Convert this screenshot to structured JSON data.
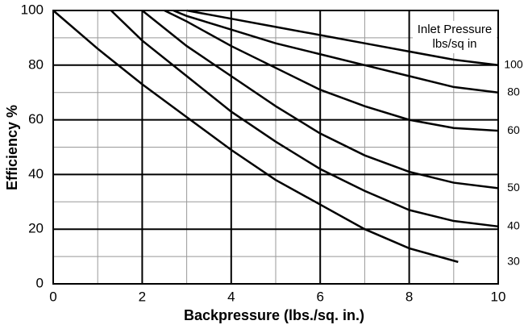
{
  "chart_data": {
    "type": "line",
    "xlabel": "Backpressure (lbs./sq. in.)",
    "ylabel": "Efficiency %",
    "annotation": [
      "Inlet Pressure",
      "lbs/sq in"
    ],
    "xlim": [
      0,
      10
    ],
    "ylim": [
      0,
      100
    ],
    "xticks": [
      0,
      2,
      4,
      6,
      8,
      10
    ],
    "yticks": [
      0,
      20,
      40,
      60,
      80,
      100
    ],
    "x_minor_grid": [
      1,
      3,
      5,
      7,
      9
    ],
    "y_minor_grid": [
      10,
      30,
      50,
      70,
      90
    ],
    "grid": true,
    "series": [
      {
        "name": "100",
        "color": "#000000",
        "x": [
          3,
          4,
          5,
          6,
          7,
          8,
          9,
          10
        ],
        "values": [
          100,
          97,
          94,
          91,
          88,
          85,
          82,
          80
        ]
      },
      {
        "name": "80",
        "color": "#000000",
        "x": [
          2.7,
          3,
          4,
          5,
          6,
          7,
          8,
          9,
          10
        ],
        "values": [
          100,
          98,
          93,
          88,
          84,
          80,
          76,
          72,
          70
        ]
      },
      {
        "name": "60",
        "color": "#000000",
        "x": [
          2.5,
          3,
          4,
          5,
          6,
          7,
          8,
          9,
          10
        ],
        "values": [
          100,
          96,
          87,
          79,
          71,
          65,
          60,
          57,
          56
        ]
      },
      {
        "name": "50",
        "color": "#000000",
        "x": [
          2,
          3,
          4,
          5,
          6,
          7,
          8,
          9,
          10
        ],
        "values": [
          100,
          87,
          76,
          65,
          55,
          47,
          41,
          37,
          35
        ]
      },
      {
        "name": "40",
        "color": "#000000",
        "x": [
          1.3,
          2,
          3,
          4,
          5,
          6,
          7,
          8,
          9,
          10
        ],
        "values": [
          100,
          89,
          76,
          63,
          52,
          42,
          34,
          27,
          23,
          21
        ]
      },
      {
        "name": "30",
        "color": "#000000",
        "x": [
          0,
          1,
          2,
          3,
          4,
          5,
          6,
          7,
          8,
          9.1
        ],
        "values": [
          100,
          86,
          73,
          61,
          49,
          38,
          29,
          20,
          13,
          8
        ]
      }
    ]
  }
}
